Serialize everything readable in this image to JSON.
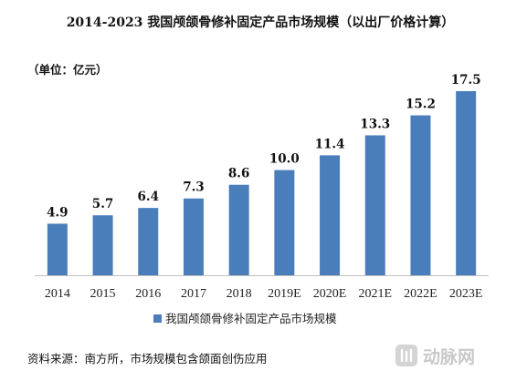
{
  "chart_data": {
    "type": "bar",
    "title": "2014-2023 我国颅颌骨修补固定产品市场规模（以出厂价格计算）",
    "unit_note": "（单位：亿元）",
    "categories": [
      "2014",
      "2015",
      "2016",
      "2017",
      "2018",
      "2019E",
      "2020E",
      "2021E",
      "2022E",
      "2023E"
    ],
    "series": [
      {
        "name": "我国颅颌骨修补固定产品市场规模",
        "values": [
          4.9,
          5.7,
          6.4,
          7.3,
          8.6,
          10.0,
          11.4,
          13.3,
          15.2,
          17.5
        ],
        "labels": [
          "4.9",
          "5.7",
          "6.4",
          "7.3",
          "8.6",
          "10.0",
          "11.4",
          "13.3",
          "15.2",
          "17.5"
        ],
        "color": "#4a7ebb"
      }
    ],
    "ylim": [
      0,
      17.5
    ],
    "grid": false,
    "yaxis_visible": false,
    "legend_position": "bottom",
    "source": "资料来源：南方所，市场规模包含颌面创伤应用"
  },
  "watermark": {
    "text": "动脉网"
  },
  "colors": {
    "bar": "#4a7ebb",
    "axis": "#bfbfbf"
  }
}
